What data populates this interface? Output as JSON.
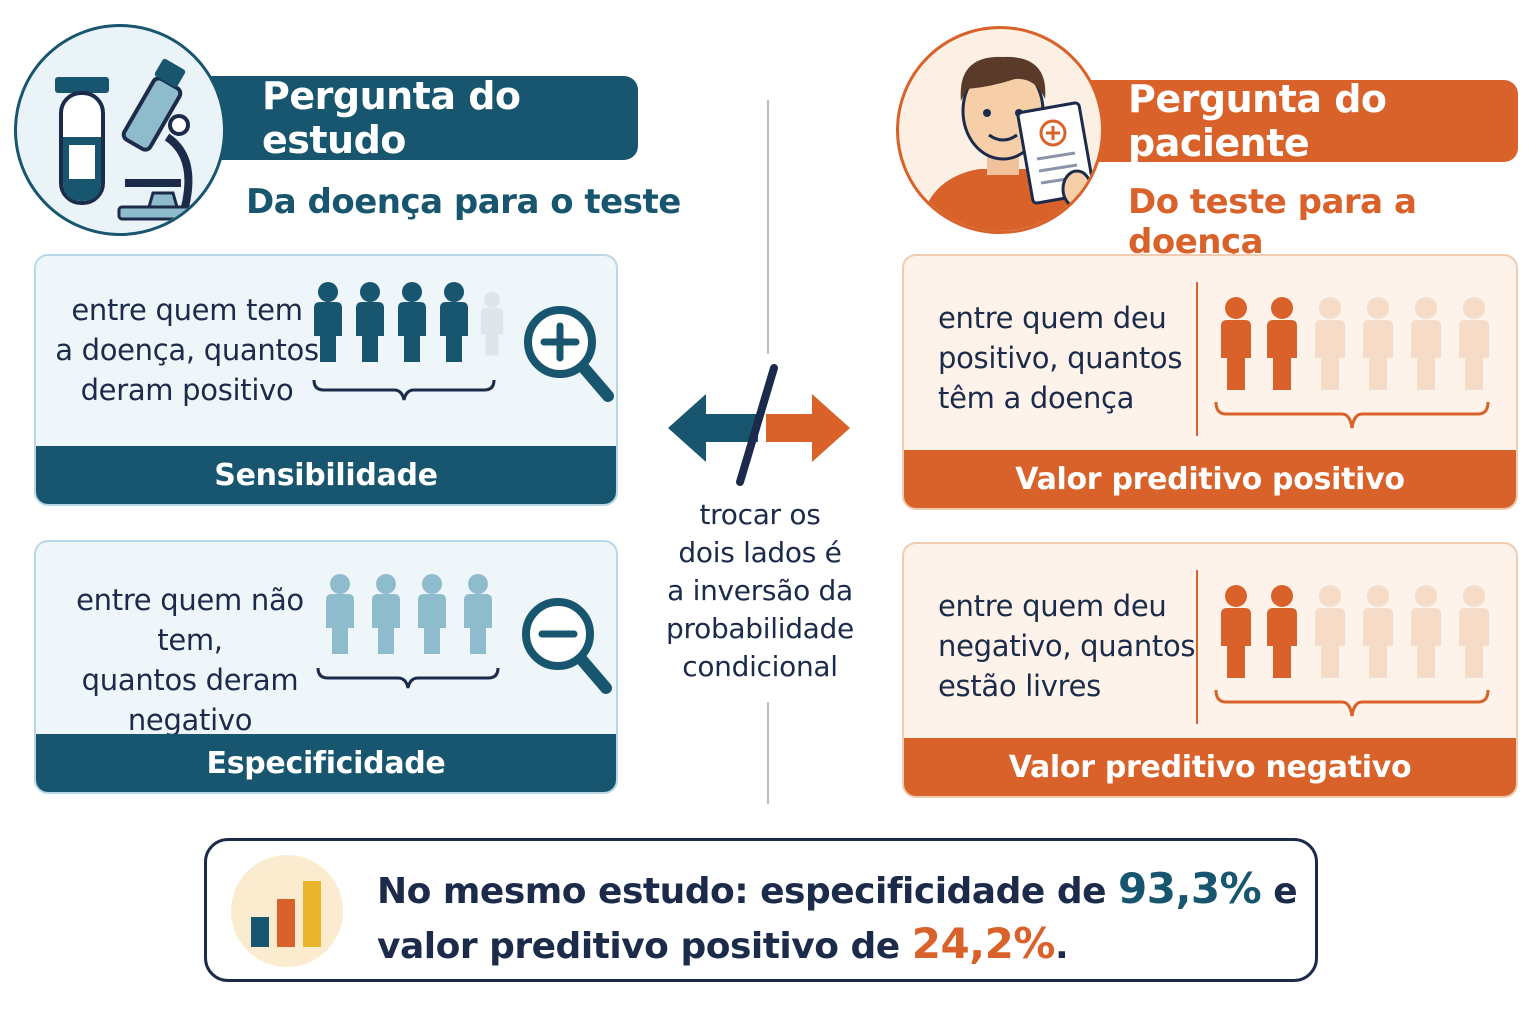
{
  "left": {
    "title": "Pergunta do estudo",
    "subtitle": "Da doença para o teste",
    "cards": [
      {
        "text": [
          "entre quem tem",
          "a doença, quantos",
          "deram positivo"
        ],
        "label": "Sensibilidade"
      },
      {
        "text": [
          "entre quem não tem,",
          "quantos deram",
          "negativo"
        ],
        "label": "Especificidade"
      }
    ]
  },
  "right": {
    "title": "Pergunta do paciente",
    "subtitle": "Do teste para a doença",
    "cards": [
      {
        "text": [
          "entre quem deu",
          "positivo, quantos",
          "têm a doença"
        ],
        "label": "Valor preditivo positivo"
      },
      {
        "text": [
          "entre quem deu",
          "negativo, quantos",
          "estão livres"
        ],
        "label": "Valor preditivo negativo"
      }
    ]
  },
  "center": {
    "lines": [
      "trocar os",
      "dois lados é",
      "a inversão da",
      "probabilidade",
      "condicional"
    ]
  },
  "bottom": {
    "line1_prefix": "No mesmo estudo: especificidade de ",
    "specificity_value": "93,3%",
    "line1_suffix": " e",
    "line2_prefix": "valor preditivo positivo de ",
    "ppv_value": "24,2%",
    "line2_suffix": "."
  },
  "colors": {
    "teal": "#17566e",
    "orange": "#d9622b",
    "light_teal": "#8fbccd",
    "light_orange": "#f6dcc6",
    "navy": "#1c2b4a"
  },
  "icons": {
    "left_circle": "test-tube-microscope-icon",
    "right_circle": "patient-with-report-icon",
    "sensitivity": "magnifier-plus-icon",
    "specificity": "magnifier-minus-icon",
    "center": "broken-two-way-arrow-icon",
    "bottom": "bar-chart-icon"
  }
}
